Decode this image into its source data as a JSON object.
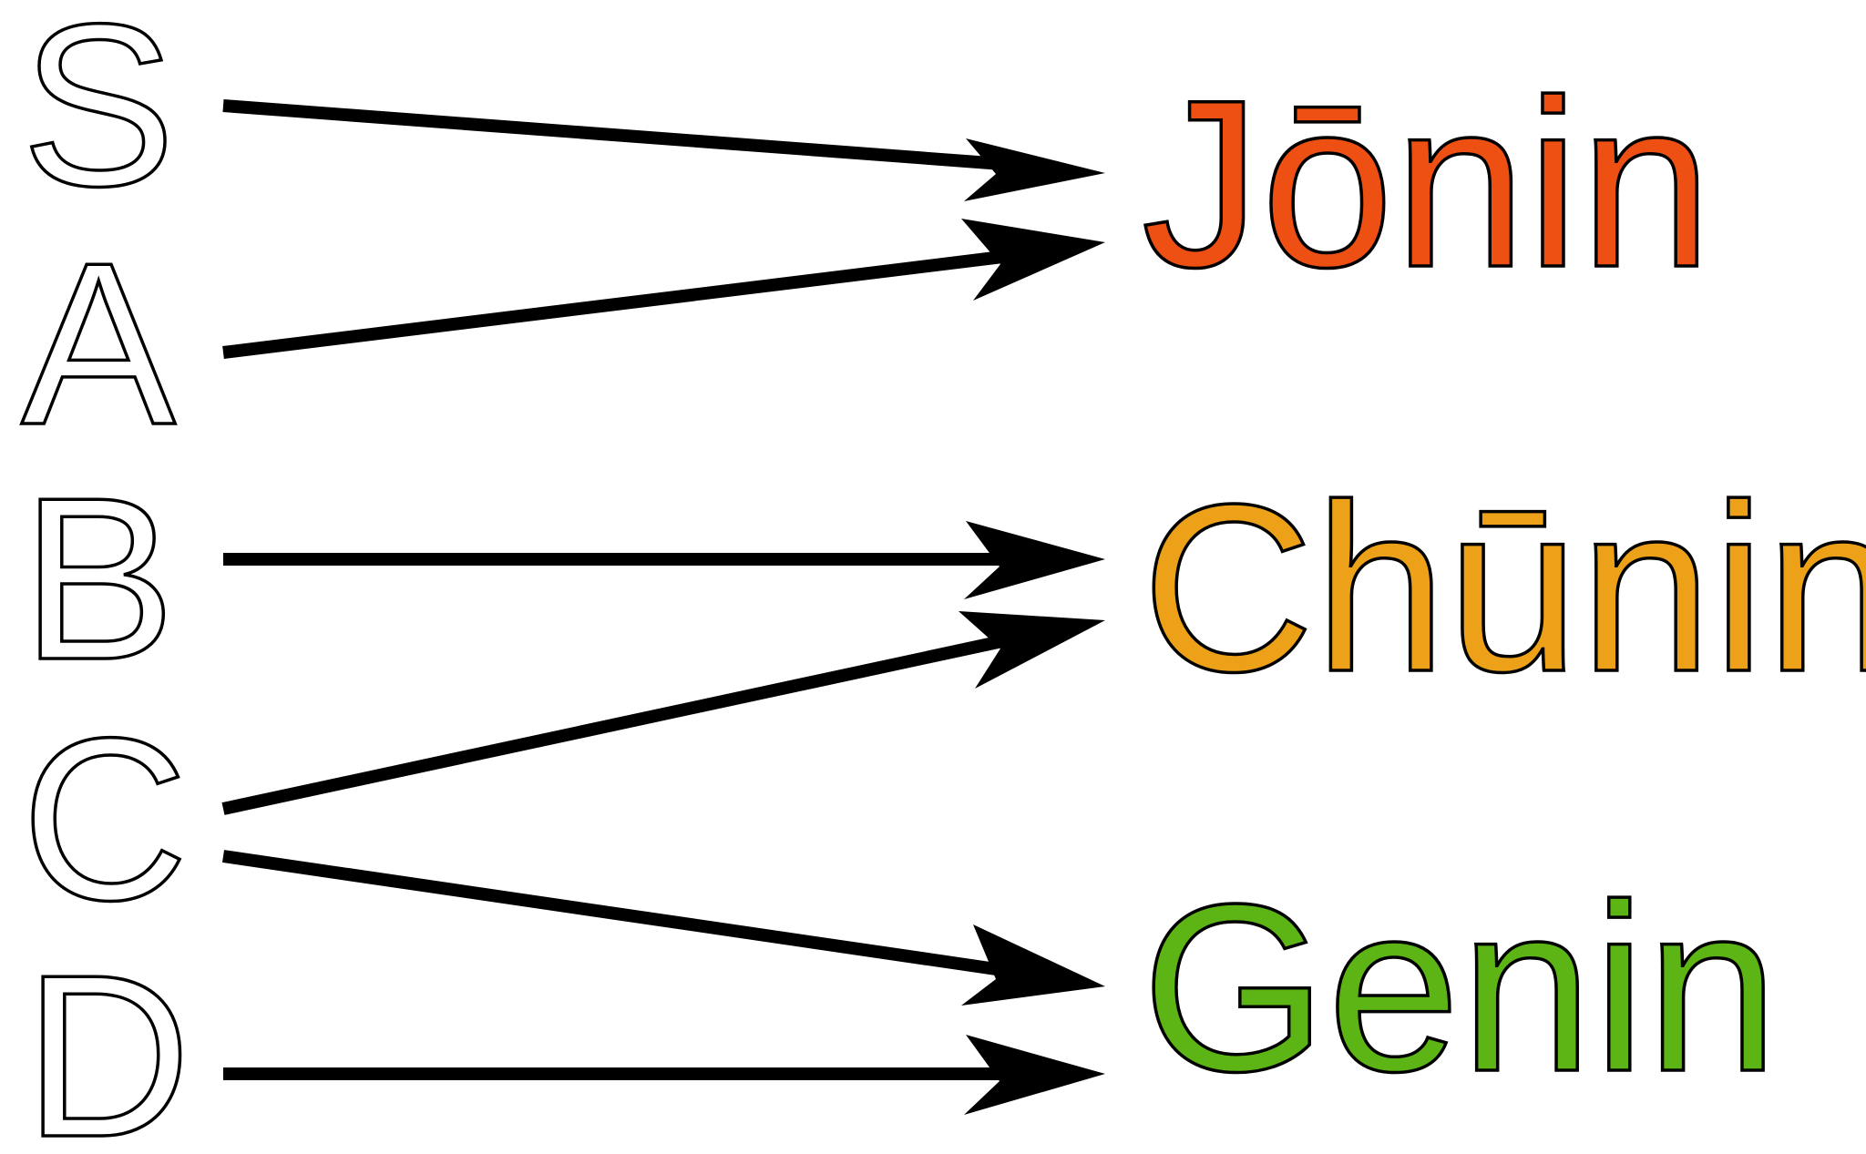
{
  "ranks": [
    {
      "id": "S",
      "label": "S"
    },
    {
      "id": "A",
      "label": "A"
    },
    {
      "id": "B",
      "label": "B"
    },
    {
      "id": "C",
      "label": "C"
    },
    {
      "id": "D",
      "label": "D"
    }
  ],
  "levels": [
    {
      "id": "jonin",
      "label": "Jōnin",
      "color": "#ee4f13"
    },
    {
      "id": "chunin",
      "label": "Chūnin",
      "color": "#eca119"
    },
    {
      "id": "genin",
      "label": "Genin",
      "color": "#5cb515"
    }
  ],
  "mappings": [
    {
      "from": "S",
      "to": "jonin"
    },
    {
      "from": "A",
      "to": "jonin"
    },
    {
      "from": "B",
      "to": "chunin"
    },
    {
      "from": "C",
      "to": "chunin"
    },
    {
      "from": "C",
      "to": "genin"
    },
    {
      "from": "D",
      "to": "genin"
    }
  ],
  "colors": {
    "arrow": "#000000",
    "letter_fill": "#ffffff",
    "outline": "#000000"
  }
}
